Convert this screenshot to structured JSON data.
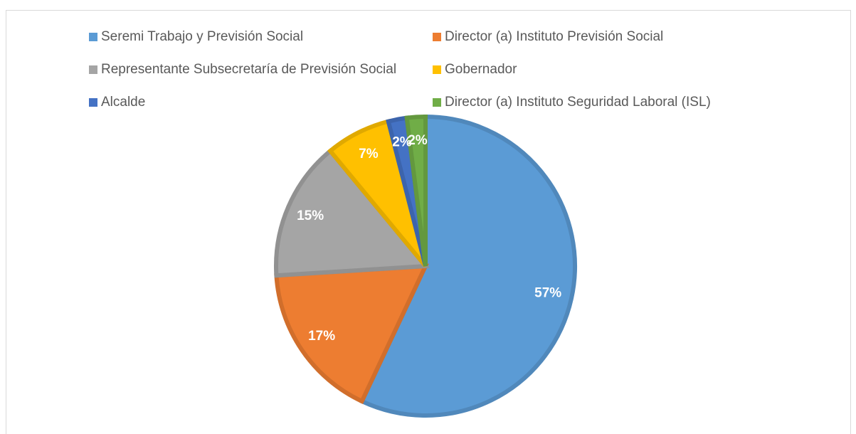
{
  "chart_data": {
    "type": "pie",
    "categories": [
      "Seremi Trabajo y Previsión Social",
      "Director (a) Instituto Previsión Social",
      "Representante Subsecretaría de Previsión Social",
      "Gobernador",
      "Alcalde",
      "Director (a) Instituto Seguridad Laboral (ISL)"
    ],
    "values": [
      57,
      17,
      15,
      7,
      2,
      2
    ],
    "value_labels": [
      "57%",
      "17%",
      "15%",
      "7%",
      "2%",
      "2%"
    ],
    "colors": [
      "#5b9bd5",
      "#ed7d31",
      "#a5a5a5",
      "#ffc000",
      "#4472c4",
      "#70ad47"
    ],
    "legend": "top"
  }
}
